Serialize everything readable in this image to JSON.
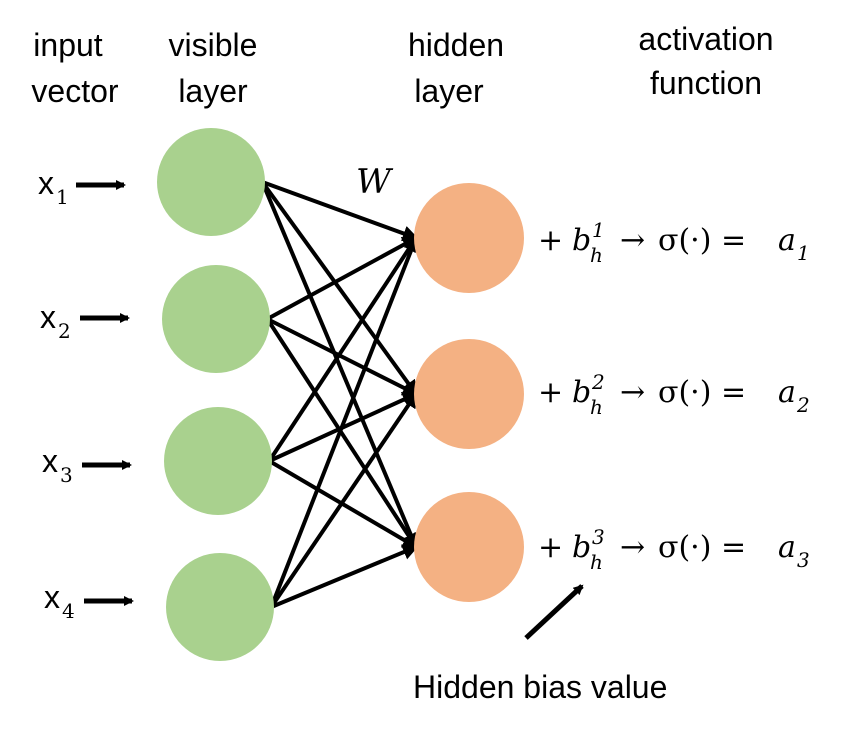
{
  "headers": {
    "input": [
      "input",
      "vector"
    ],
    "visible": [
      "visible",
      "layer"
    ],
    "hidden": [
      "hidden",
      "layer"
    ],
    "activation": [
      "activation",
      "function"
    ]
  },
  "inputs": [
    {
      "base": "x",
      "sub": "1"
    },
    {
      "base": "x",
      "sub": "2"
    },
    {
      "base": "x",
      "sub": "3"
    },
    {
      "base": "x",
      "sub": "4"
    }
  ],
  "weight_label": "W",
  "hidden_equations": [
    {
      "bias_base": "b",
      "bias_sub": "h",
      "bias_sup": "1",
      "arrow": "→",
      "sigma": "σ(·) =",
      "out_base": "a",
      "out_sub": "1"
    },
    {
      "bias_base": "b",
      "bias_sub": "h",
      "bias_sup": "2",
      "arrow": "→",
      "sigma": "σ(·) =",
      "out_base": "a",
      "out_sub": "2"
    },
    {
      "bias_base": "b",
      "bias_sub": "h",
      "bias_sup": "3",
      "arrow": "→",
      "sigma": "σ(·) =",
      "out_base": "a",
      "out_sub": "3"
    }
  ],
  "plus_sign": "+",
  "bias_caption": "Hidden bias value",
  "colors": {
    "visible_fill": "#a9d18e",
    "hidden_fill": "#f4b183",
    "line": "#000000"
  }
}
